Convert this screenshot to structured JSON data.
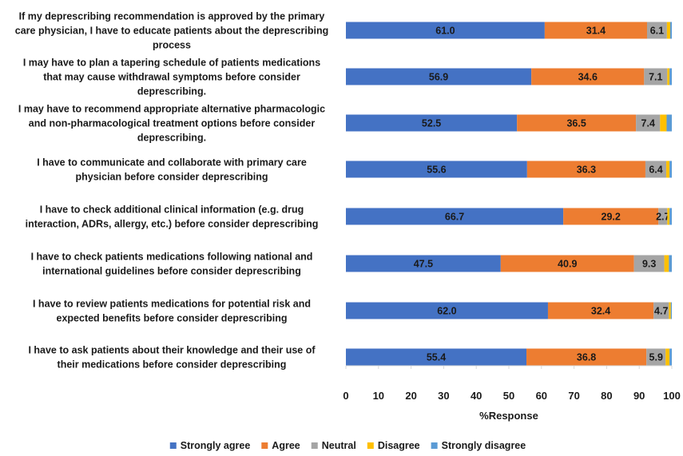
{
  "chart_data": {
    "type": "bar",
    "orientation": "horizontal",
    "stacked": true,
    "xlabel": "%Response",
    "xlim": [
      0,
      100
    ],
    "xticks": [
      0,
      10,
      20,
      30,
      40,
      50,
      60,
      70,
      80,
      90,
      100
    ],
    "grid": false,
    "legend_position": "bottom",
    "categories": [
      "If my deprescribing recommendation is approved by the primary care physician, I have to educate patients about the deprescribing process",
      "I may have to plan a tapering schedule of patients medications that may cause withdrawal symptoms before consider deprescribing.",
      "I may have to recommend appropriate alternative pharmacologic and non-pharmacological treatment options before consider deprescribing.",
      "I have to communicate and collaborate with primary care physician before consider deprescribing",
      "I have to check additional clinical information (e.g. drug interaction, ADRs, allergy, etc.) before consider deprescribing",
      "I have to check patients medications following national and international guidelines before consider deprescribing",
      "I have to review patients medications for potential risk and expected benefits before consider deprescribing",
      "I have to ask patients about their knowledge and their use of their medications before consider deprescribing"
    ],
    "category_lines": [
      [
        "If my deprescribing recommendation is approved by the primary",
        "care physician, I have to educate patients about the deprescribing",
        "process"
      ],
      [
        "I may have to plan a tapering schedule of patients medications",
        "that may cause withdrawal symptoms before consider",
        "deprescribing."
      ],
      [
        "I may have to recommend appropriate alternative pharmacologic",
        "and non-pharmacological treatment options before consider",
        "deprescribing."
      ],
      [
        "I have to communicate and collaborate with primary care",
        "physician before consider deprescribing"
      ],
      [
        "I have to check additional clinical information (e.g. drug",
        "interaction, ADRs, allergy, etc.) before consider deprescribing"
      ],
      [
        "I have to check patients medications following national and",
        "international guidelines before consider deprescribing"
      ],
      [
        "I have to review patients medications for potential risk and",
        "expected benefits before consider deprescribing"
      ],
      [
        "I have to ask patients about their knowledge and their use of",
        "their medications before consider deprescribing"
      ]
    ],
    "series": [
      {
        "name": "Strongly agree",
        "color": "#4472c4",
        "values": [
          61.0,
          56.9,
          52.5,
          55.6,
          66.7,
          47.5,
          62.0,
          55.4
        ],
        "labels": [
          "61.0",
          "56.9",
          "52.5",
          "55.6",
          "66.7",
          "47.5",
          "62.0",
          "55.4"
        ]
      },
      {
        "name": "Agree",
        "color": "#ed7d31",
        "values": [
          31.4,
          34.6,
          36.5,
          36.3,
          29.2,
          40.9,
          32.4,
          36.8
        ],
        "labels": [
          "31.4",
          "34.6",
          "36.5",
          "36.3",
          "29.2",
          "40.9",
          "32.4",
          "36.8"
        ]
      },
      {
        "name": "Neutral",
        "color": "#a5a5a5",
        "values": [
          6.1,
          7.1,
          7.4,
          6.4,
          2.7,
          9.3,
          4.7,
          5.9
        ],
        "labels": [
          "6.1",
          "7.1",
          "7.4",
          "6.4",
          "2.7",
          "9.3",
          "4.7",
          "5.9"
        ]
      },
      {
        "name": "Disagree",
        "color": "#ffc000",
        "values": [
          1.0,
          0.7,
          2.0,
          1.0,
          0.7,
          1.4,
          0.6,
          1.2
        ],
        "labels": []
      },
      {
        "name": "Strongly disagree",
        "color": "#5b9bd5",
        "values": [
          0.5,
          0.7,
          1.6,
          0.7,
          0.7,
          0.9,
          0.3,
          0.7
        ],
        "labels": []
      }
    ]
  }
}
